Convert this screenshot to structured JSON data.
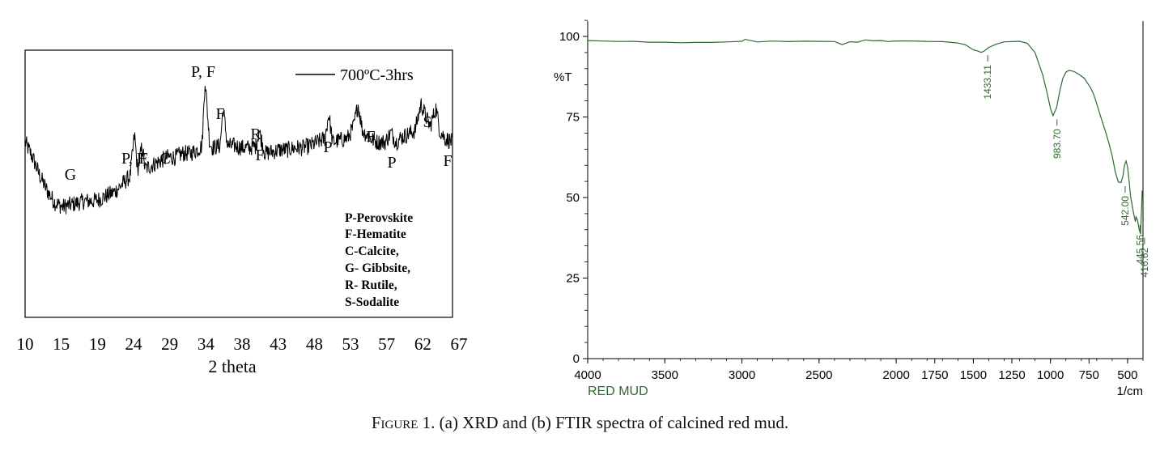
{
  "chart_data": [
    {
      "type": "line",
      "panel": "xrd",
      "xlabel": "2 theta",
      "ylabel": "",
      "xlim": [
        10,
        67
      ],
      "x_ticks": [
        "10",
        "15",
        "19",
        "24",
        "29",
        "34",
        "38",
        "43",
        "48",
        "53",
        "57",
        "62",
        "67"
      ],
      "grid": false,
      "legend": {
        "position": "top-right",
        "entries": [
          "700ºC-3hrs"
        ]
      },
      "series": [
        {
          "name": "700ºC-3hrs",
          "color": "#000000",
          "x": [
            10,
            11,
            12,
            13,
            14,
            15,
            16,
            17,
            18,
            19,
            20,
            21,
            22,
            23,
            24,
            24.6,
            25,
            25.6,
            26,
            27,
            28,
            29,
            30,
            31,
            32,
            33,
            33.6,
            34,
            34.6,
            35,
            36,
            36.4,
            37,
            38,
            39,
            40,
            40.8,
            41.2,
            42,
            43,
            44,
            45,
            46,
            47,
            48,
            49,
            50,
            50.5,
            51,
            52,
            53,
            53.8,
            54.4,
            55,
            56,
            57,
            58,
            58.8,
            59.5,
            60,
            61,
            62,
            62.8,
            63.4,
            64,
            64.8,
            65.3,
            66,
            67
          ],
          "values": [
            70,
            62,
            52,
            44,
            38,
            36,
            37,
            38,
            39,
            39,
            40,
            42,
            44,
            48,
            52,
            74,
            55,
            68,
            56,
            58,
            60,
            62,
            62,
            64,
            64,
            66,
            68,
            103,
            70,
            67,
            68,
            88,
            68,
            68,
            67,
            67,
            68,
            76,
            64,
            65,
            66,
            66,
            67,
            67,
            68,
            70,
            72,
            85,
            70,
            71,
            72,
            78,
            90,
            76,
            72,
            70,
            70,
            75,
            70,
            72,
            74,
            76,
            90,
            84,
            78,
            88,
            76,
            72,
            70
          ]
        }
      ],
      "annotations": [
        "P, F",
        "F",
        "F",
        "R",
        "F",
        "P",
        "F",
        "S",
        "G",
        "P, F",
        "C",
        "P",
        "F"
      ],
      "phase_legend": [
        "P-Perovskite",
        "F-Hematite",
        "C-Calcite,",
        "G- Gibbsite,",
        "R- Rutile,",
        "S-Sodalite"
      ]
    },
    {
      "type": "line",
      "panel": "ftir",
      "series_label": "RED MUD",
      "xlabel": "1/cm",
      "ylabel": "%T",
      "xlim": [
        4000,
        400
      ],
      "ylim": [
        0,
        100
      ],
      "x_ticks": [
        "4000",
        "3500",
        "3000",
        "2500",
        "2000",
        "1750",
        "1500",
        "1250",
        "1000",
        "750",
        "500"
      ],
      "y_ticks": [
        "100",
        "75",
        "50",
        "25",
        "0"
      ],
      "grid": false,
      "series": [
        {
          "name": "RED MUD",
          "color": "#2e6b2e",
          "x": [
            4000,
            3900,
            3800,
            3700,
            3600,
            3500,
            3400,
            3300,
            3200,
            3100,
            3000,
            2980,
            2950,
            2900,
            2800,
            2700,
            2600,
            2500,
            2400,
            2350,
            2300,
            2250,
            2200,
            2150,
            2100,
            2050,
            2000,
            1900,
            1800,
            1700,
            1600,
            1550,
            1500,
            1470,
            1450,
            1433,
            1400,
            1350,
            1300,
            1250,
            1200,
            1150,
            1100,
            1050,
            1020,
            1000,
            983,
            960,
            940,
            920,
            900,
            880,
            850,
            820,
            800,
            780,
            760,
            740,
            720,
            700,
            680,
            660,
            640,
            620,
            600,
            580,
            560,
            542,
            530,
            520,
            510,
            500,
            490,
            480,
            470,
            460,
            450,
            445,
            435,
            425,
            416,
            410,
            405,
            400
          ],
          "values": [
            98.8,
            98.7,
            98.6,
            98.4,
            98.2,
            98.1,
            98.0,
            98.0,
            98.1,
            98.2,
            98.5,
            99.0,
            98.6,
            98.4,
            98.4,
            98.4,
            98.5,
            98.6,
            98.5,
            97.5,
            98.5,
            98.3,
            99.0,
            98.5,
            98.6,
            98.6,
            98.6,
            98.5,
            98.4,
            98.3,
            98.0,
            97.5,
            96.0,
            95.4,
            95.2,
            95.2,
            96.5,
            97.8,
            98.3,
            98.5,
            98.5,
            98.0,
            95.0,
            88.0,
            82.0,
            77.5,
            75.3,
            78.0,
            83.0,
            87.0,
            89.0,
            89.5,
            89.2,
            88.5,
            87.8,
            87.0,
            85.5,
            84.0,
            82.0,
            79.0,
            76.0,
            73.0,
            70.0,
            66.5,
            63.0,
            58.0,
            55.0,
            54.5,
            56.5,
            60.0,
            61.5,
            59.5,
            55.0,
            50.0,
            47.5,
            45.0,
            42.5,
            44.0,
            43.0,
            40.0,
            38.5,
            46.0,
            52.0,
            52.0
          ]
        }
      ],
      "peak_labels": [
        "1433.11",
        "983.70",
        "542.00",
        "445.56",
        "416.62"
      ]
    }
  ],
  "caption": {
    "prefix": "Figure 1.",
    "text": " (a) XRD and (b) FTIR spectra of calcined red mud."
  }
}
